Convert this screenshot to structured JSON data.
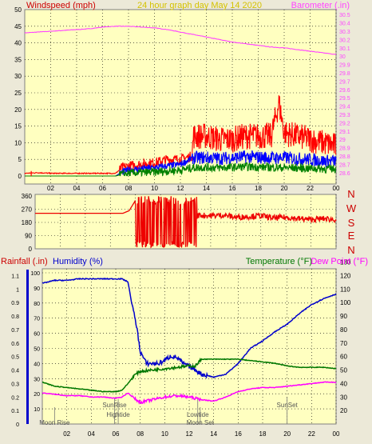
{
  "top_panel": {
    "title": "24 hour graph day   May 14 2020",
    "left_label": "Windspeed (mph)",
    "right_label": "Barometer (.in)"
  },
  "mid_panel": {
    "compass": [
      "N",
      "W",
      "S",
      "E",
      "N"
    ]
  },
  "bottom_panel": {
    "rain_label": "Rainfall (.in)",
    "humidity_label": "Humidity (%)",
    "temp_label": "Temperature (°F)",
    "dew_label": "Dew Point (°F)",
    "events": [
      {
        "label": "Moon Rise",
        "hour": 1.0,
        "row": 2
      },
      {
        "label": "SunRise",
        "hour": 5.9,
        "row": 0
      },
      {
        "label": "Hightide",
        "hour": 6.2,
        "row": 1
      },
      {
        "label": "Lowtide",
        "hour": 12.7,
        "row": 1
      },
      {
        "label": "Moon Set",
        "hour": 12.9,
        "row": 2
      },
      {
        "label": "SunSet",
        "hour": 20.0,
        "row": 0
      }
    ]
  },
  "colors": {
    "plot_bg": "#ffffc0",
    "page_bg": "#ece9d8",
    "title": "#d4c200",
    "windspeed_axis": "#cc0000",
    "barometer": "#ff44ff",
    "gust": "#ff0000",
    "wind_avg": "#0000ff",
    "wind_low": "#008000",
    "direction": "#ee0000",
    "compass": "#cc0000",
    "humidity": "#0000cc",
    "temperature": "#007700",
    "dew_point": "#ff00ff",
    "rain_axis": "#cc0000"
  },
  "chart_data": [
    {
      "type": "line",
      "name": "wind",
      "x_ticks": [
        "02",
        "04",
        "06",
        "08",
        "10",
        "12",
        "14",
        "16",
        "18",
        "20",
        "22",
        "00"
      ],
      "y_ticks": [
        "0",
        "5",
        "10",
        "15",
        "20",
        "25",
        "30",
        "35",
        "40",
        "45",
        "50"
      ],
      "ylim": [
        0,
        50
      ],
      "y2_ticks": [
        "28.6",
        "28.7",
        "28.8",
        "28.9",
        "29",
        "29.1",
        "29.2",
        "29.3",
        "29.4",
        "29.5",
        "29.6",
        "29.7",
        "29.8",
        "29.9",
        "30",
        "30.1",
        "30.2",
        "30.3",
        "30.4",
        "30.5"
      ],
      "y2lim": [
        28.56,
        30.56
      ],
      "xlim": [
        0,
        24
      ],
      "series": [
        {
          "key": "barometer",
          "axis": "y2",
          "x": [
            0,
            2,
            4,
            5,
            6,
            7,
            8,
            9,
            10,
            11,
            12,
            13,
            14,
            15,
            16,
            17,
            18,
            19,
            20,
            21,
            22,
            23,
            24
          ],
          "values": [
            30.28,
            30.3,
            30.32,
            30.33,
            30.35,
            30.36,
            30.36,
            30.35,
            30.34,
            30.32,
            30.29,
            30.26,
            30.23,
            30.2,
            30.17,
            30.15,
            30.13,
            30.11,
            30.1,
            30.08,
            30.06,
            30.04,
            30.02
          ]
        },
        {
          "key": "gust",
          "axis": "y",
          "x": [
            0,
            1,
            2,
            3,
            4,
            5,
            6,
            7,
            7.5,
            8,
            9,
            10,
            11,
            12,
            12.9,
            13,
            14,
            15,
            16,
            17,
            18,
            19,
            19.6,
            20,
            21,
            22,
            23,
            24
          ],
          "values": [
            0.8,
            1,
            0.8,
            0.8,
            0.8,
            0.8,
            0.8,
            0.8,
            2.5,
            3,
            3.5,
            4,
            5,
            5,
            6,
            12,
            12,
            11,
            11,
            12,
            12,
            12,
            22,
            13,
            12,
            11,
            10,
            9
          ]
        },
        {
          "key": "wind_avg",
          "axis": "y",
          "x": [
            0,
            7,
            7.5,
            8,
            9,
            10,
            11,
            12,
            13,
            14,
            15,
            16,
            17,
            18,
            19,
            20,
            21,
            22,
            23,
            24
          ],
          "values": [
            0,
            0,
            1.2,
            1.8,
            2.2,
            2.5,
            3,
            3.5,
            5.5,
            5.5,
            5.3,
            5.5,
            5.8,
            5.6,
            5.5,
            5.5,
            5.2,
            5,
            4.5,
            4.5
          ]
        },
        {
          "key": "wind_low",
          "axis": "y",
          "x": [
            0,
            7,
            7.5,
            8,
            9,
            10,
            11,
            12,
            13,
            14,
            15,
            16,
            17,
            18,
            19,
            20,
            21,
            22,
            23,
            24
          ],
          "values": [
            0,
            0,
            0.5,
            0.8,
            1,
            1.2,
            1.5,
            1.8,
            2.5,
            2.6,
            2.5,
            2.6,
            2.8,
            2.7,
            2.6,
            2.5,
            2.4,
            2.3,
            2.2,
            2.2
          ]
        }
      ]
    },
    {
      "type": "line",
      "name": "wind_direction",
      "y_ticks": [
        "0",
        "90",
        "180",
        "270",
        "360"
      ],
      "ylim": [
        0,
        360
      ],
      "xlim": [
        0,
        24
      ],
      "series": [
        {
          "key": "direction",
          "x": [
            0,
            7,
            7.5,
            8,
            8.2,
            8.4,
            9,
            9.6,
            10,
            10.4,
            11,
            11.6,
            12,
            12.4,
            12.8,
            13,
            14,
            15,
            16,
            17,
            18,
            19,
            20,
            21,
            22,
            23,
            24
          ],
          "values": [
            242,
            242,
            260,
            330,
            20,
            340,
            30,
            345,
            40,
            330,
            20,
            350,
            35,
            330,
            200,
            230,
            225,
            230,
            215,
            220,
            225,
            210,
            215,
            205,
            200,
            205,
            200
          ]
        }
      ]
    },
    {
      "type": "line",
      "name": "rain_humidity_temp",
      "y_ticks": [
        "0",
        "0.1",
        "0.2",
        "0.3",
        "0.4",
        "0.5",
        "0.6",
        "0.7",
        "0.8",
        "0.9",
        "1",
        "1.1"
      ],
      "ylim": [
        0,
        1.15
      ],
      "y_left_ticks": [
        "10",
        "20",
        "30",
        "40",
        "50",
        "60",
        "70",
        "80",
        "90",
        "100"
      ],
      "y2_ticks": [
        "20",
        "30",
        "40",
        "50",
        "60",
        "70",
        "80",
        "90",
        "100",
        "110",
        "120",
        "130"
      ],
      "y2lim": [
        10,
        125
      ],
      "x_ticks": [
        "02",
        "04",
        "06",
        "08",
        "10",
        "12",
        "14",
        "16",
        "18",
        "20",
        "22",
        "00"
      ],
      "xlim": [
        0,
        24
      ],
      "series": [
        {
          "key": "humidity",
          "axis": "left",
          "x": [
            0,
            1,
            2,
            3,
            4,
            5,
            6,
            6.5,
            7,
            7.3,
            7.7,
            8,
            8.5,
            9,
            9.5,
            10,
            10.5,
            11,
            11.5,
            12,
            12.5,
            13,
            14,
            15,
            16,
            17,
            18,
            19,
            20,
            21,
            22,
            23,
            24
          ],
          "values": [
            93,
            95,
            95,
            96,
            96,
            96,
            96,
            96,
            94,
            80,
            65,
            48,
            40,
            40,
            40,
            42,
            45,
            44,
            40,
            38,
            36,
            33,
            31,
            33,
            40,
            50,
            55,
            61,
            66,
            73,
            79,
            83,
            86
          ]
        },
        {
          "key": "temperature",
          "axis": "y2",
          "x": [
            0,
            1,
            2,
            3,
            4,
            5,
            6,
            6.5,
            7,
            7.5,
            8,
            9,
            10,
            11,
            12,
            12.5,
            13,
            14,
            15,
            16,
            17,
            18,
            19,
            20,
            21,
            22,
            23,
            24
          ],
          "values": [
            41,
            38,
            37,
            36,
            35,
            34,
            34,
            35,
            40,
            46,
            49,
            50,
            51,
            52,
            53,
            53,
            58,
            58,
            58,
            58,
            57,
            56,
            55,
            53,
            52,
            52,
            52,
            51
          ]
        },
        {
          "key": "dew_point",
          "axis": "y2",
          "x": [
            0,
            1,
            2,
            3,
            4,
            5,
            6,
            6.5,
            7,
            7.5,
            8,
            9,
            10,
            11,
            12,
            13,
            14,
            15,
            16,
            17,
            18,
            19,
            20,
            21,
            22,
            23,
            24
          ],
          "values": [
            33,
            32,
            31,
            31,
            30,
            30,
            29,
            30,
            33,
            29,
            26,
            28,
            30,
            31,
            30,
            28,
            27,
            30,
            34,
            36,
            37,
            37,
            38,
            39,
            40,
            41,
            41
          ]
        }
      ]
    }
  ]
}
